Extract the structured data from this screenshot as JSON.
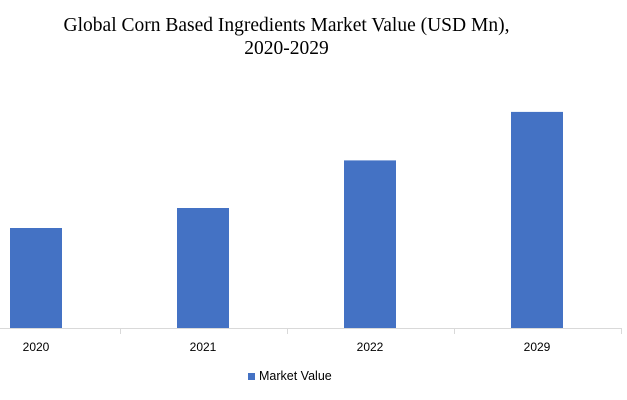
{
  "chart_data": {
    "type": "bar",
    "title_lines": [
      "Global Corn Based Ingredients Market Value (USD Mn),",
      "2020-2029"
    ],
    "categories": [
      "2020",
      "2021",
      "2022",
      "2029"
    ],
    "series": [
      {
        "name": "Market Value",
        "color": "#4472C4",
        "values": [
          105,
          126,
          176,
          227
        ]
      }
    ],
    "xlabel": "",
    "ylabel": "",
    "ylim": [
      0,
      250
    ],
    "grid": false,
    "legend": "bottom"
  }
}
